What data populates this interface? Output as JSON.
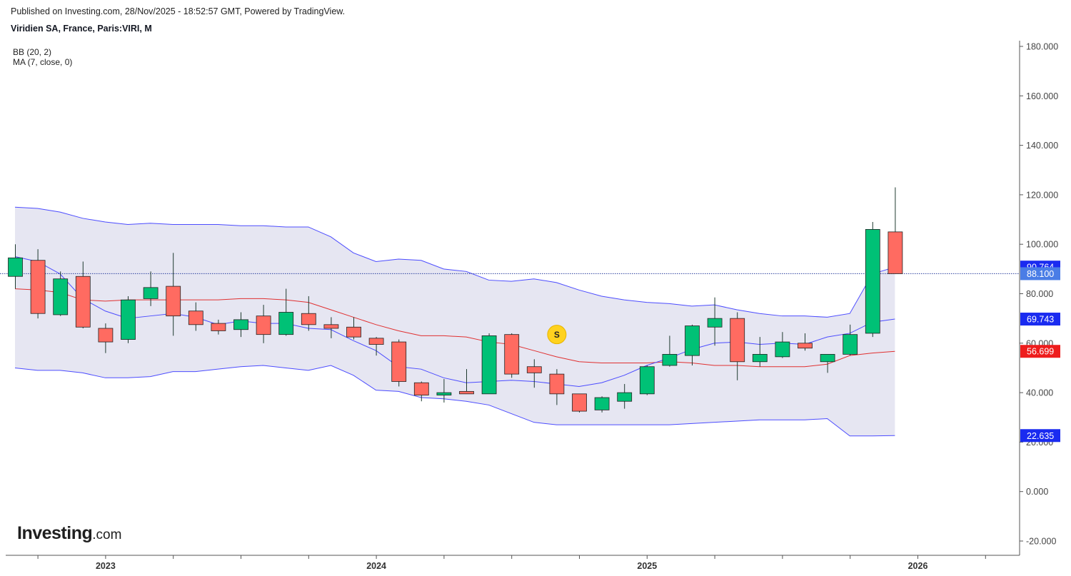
{
  "header": {
    "publish_line": "Published on Investing.com, 28/Nov/2025 - 18:52:57 GMT, Powered by TradingView.",
    "symbol_title": "Viridien SA, France, Paris:VIRI, M"
  },
  "indicators": {
    "bb_label": "BB (20, 2)",
    "ma_label": "MA (7, close, 0)"
  },
  "logo": {
    "text": "Investing",
    "suffix": ".com"
  },
  "chart_data": {
    "type": "candlestick",
    "title": "Viridien SA, France, Paris:VIRI, M",
    "interval": "Monthly",
    "ylim": [
      -25,
      185
    ],
    "y_ticks": [
      180,
      160,
      140,
      120,
      100,
      80,
      60,
      40,
      20,
      0,
      -20
    ],
    "y_tick_format_decimals": 3,
    "x_tick_labels": [
      {
        "label": "2023",
        "index": 4
      },
      {
        "label": "2024",
        "index": 16
      },
      {
        "label": "2025",
        "index": 28
      },
      {
        "label": "2026",
        "index": 40
      }
    ],
    "minor_tick_indices": [
      1,
      7,
      10,
      13,
      19,
      22,
      25,
      31,
      34,
      37,
      43
    ],
    "grid": false,
    "colors": {
      "up": "#00c176",
      "down": "#ff6b61",
      "wick": "#1e3a2f",
      "bb_band": "#4c4cff",
      "bb_fill": "#e6e6f2",
      "ma": "#e03030",
      "last_price_line": "#2a3f9e"
    },
    "candles": [
      {
        "o": 87.0,
        "h": 100.0,
        "l": 82.0,
        "c": 94.5
      },
      {
        "o": 93.5,
        "h": 98.0,
        "l": 70.0,
        "c": 72.0
      },
      {
        "o": 71.5,
        "h": 89.0,
        "l": 71.0,
        "c": 86.0
      },
      {
        "o": 87.0,
        "h": 93.0,
        "l": 66.0,
        "c": 66.5
      },
      {
        "o": 66.0,
        "h": 68.0,
        "l": 56.0,
        "c": 60.5
      },
      {
        "o": 61.5,
        "h": 79.0,
        "l": 60.0,
        "c": 77.5
      },
      {
        "o": 78.0,
        "h": 89.0,
        "l": 75.0,
        "c": 82.5
      },
      {
        "o": 83.0,
        "h": 96.5,
        "l": 63.0,
        "c": 71.0
      },
      {
        "o": 73.0,
        "h": 76.5,
        "l": 65.0,
        "c": 67.5
      },
      {
        "o": 68.0,
        "h": 69.5,
        "l": 63.5,
        "c": 65.0
      },
      {
        "o": 65.5,
        "h": 72.5,
        "l": 62.5,
        "c": 69.5
      },
      {
        "o": 71.0,
        "h": 75.5,
        "l": 60.0,
        "c": 63.5
      },
      {
        "o": 63.5,
        "h": 82.0,
        "l": 63.0,
        "c": 72.5
      },
      {
        "o": 72.0,
        "h": 79.0,
        "l": 65.0,
        "c": 67.5
      },
      {
        "o": 67.5,
        "h": 70.5,
        "l": 62.0,
        "c": 66.0
      },
      {
        "o": 66.5,
        "h": 70.5,
        "l": 61.5,
        "c": 62.5
      },
      {
        "o": 62.0,
        "h": 62.5,
        "l": 55.0,
        "c": 59.5
      },
      {
        "o": 60.5,
        "h": 61.5,
        "l": 42.5,
        "c": 44.5
      },
      {
        "o": 44.0,
        "h": 44.5,
        "l": 36.5,
        "c": 39.0
      },
      {
        "o": 39.0,
        "h": 45.5,
        "l": 36.0,
        "c": 40.0
      },
      {
        "o": 40.5,
        "h": 49.5,
        "l": 39.5,
        "c": 39.5
      },
      {
        "o": 39.5,
        "h": 64.0,
        "l": 39.5,
        "c": 63.0
      },
      {
        "o": 63.5,
        "h": 64.0,
        "l": 46.0,
        "c": 47.5
      },
      {
        "o": 50.5,
        "h": 53.5,
        "l": 42.0,
        "c": 48.0
      },
      {
        "o": 47.5,
        "h": 49.5,
        "l": 35.0,
        "c": 39.5
      },
      {
        "o": 39.5,
        "h": 39.5,
        "l": 32.0,
        "c": 32.5
      },
      {
        "o": 33.0,
        "h": 38.5,
        "l": 32.0,
        "c": 38.0
      },
      {
        "o": 36.5,
        "h": 43.5,
        "l": 33.5,
        "c": 40.0
      },
      {
        "o": 39.5,
        "h": 51.0,
        "l": 39.0,
        "c": 50.5
      },
      {
        "o": 51.0,
        "h": 63.0,
        "l": 50.5,
        "c": 55.5
      },
      {
        "o": 55.0,
        "h": 67.5,
        "l": 51.0,
        "c": 67.0
      },
      {
        "o": 66.5,
        "h": 78.5,
        "l": 59.0,
        "c": 70.0
      },
      {
        "o": 70.0,
        "h": 72.5,
        "l": 45.0,
        "c": 52.5
      },
      {
        "o": 52.5,
        "h": 62.5,
        "l": 50.5,
        "c": 55.5
      },
      {
        "o": 54.5,
        "h": 64.5,
        "l": 54.0,
        "c": 60.5
      },
      {
        "o": 60.0,
        "h": 64.0,
        "l": 57.0,
        "c": 58.0
      },
      {
        "o": 52.5,
        "h": 55.5,
        "l": 48.0,
        "c": 55.5
      },
      {
        "o": 55.5,
        "h": 67.5,
        "l": 55.0,
        "c": 63.5
      },
      {
        "o": 64.0,
        "h": 109.0,
        "l": 62.5,
        "c": 106.0
      },
      {
        "o": 105.0,
        "h": 123.0,
        "l": 88.1,
        "c": 88.1
      }
    ],
    "bb_upper": [
      115,
      114.5,
      113,
      110.5,
      109,
      108,
      108.5,
      108,
      108,
      108,
      107.5,
      107.5,
      107,
      107,
      103,
      96.5,
      93,
      94,
      93.5,
      90,
      89,
      85.5,
      85,
      86,
      84.5,
      81.5,
      79,
      77.5,
      76.5,
      76,
      75,
      75.5,
      73.5,
      72,
      71,
      71,
      70.5,
      72,
      88,
      90.764
    ],
    "bb_middle": [
      82,
      81.5,
      80.5,
      77.5,
      77,
      77.5,
      77.5,
      77.5,
      77.5,
      77.5,
      78,
      78,
      77.5,
      76.5,
      73.5,
      70.5,
      67.5,
      65,
      63,
      63,
      62.5,
      60.5,
      59.5,
      57,
      54.5,
      52.5,
      52,
      52,
      52,
      52.5,
      52,
      51,
      51,
      50.5,
      50.5,
      50.5,
      51.5,
      55,
      56,
      56.699
    ],
    "bb_lower": [
      50,
      49,
      49,
      48,
      46,
      46,
      46.5,
      48.5,
      48.5,
      49.5,
      50.5,
      51,
      50,
      49,
      51,
      47,
      41,
      40.5,
      38,
      37.5,
      36.5,
      35,
      31.5,
      28,
      27,
      27,
      27,
      27,
      27,
      27,
      27.5,
      28,
      28.5,
      29,
      29,
      29,
      29.5,
      22.5,
      22.5,
      22.635
    ],
    "ma": [
      95,
      93,
      88,
      78,
      73,
      70,
      71,
      72,
      70.5,
      67.5,
      69,
      68,
      68,
      66,
      65.5,
      61,
      57,
      50.5,
      49.5,
      46,
      44,
      44.5,
      45,
      44.5,
      43.5,
      42.5,
      44,
      47,
      51,
      54,
      57.5,
      60,
      60.5,
      59.5,
      60,
      59.5,
      62.5,
      64,
      68.5,
      69.743
    ],
    "last_price": 88.1,
    "price_labels": [
      {
        "text": "90.764",
        "value": 90.764,
        "bg": "#1a2bf0",
        "fg": "#ffffff"
      },
      {
        "text": "88.100",
        "value": 88.1,
        "bg": "#4a7de6",
        "fg": "#ffffff"
      },
      {
        "text": "69.743",
        "value": 69.743,
        "bg": "#1a2bf0",
        "fg": "#ffffff"
      },
      {
        "text": "56.699",
        "value": 56.699,
        "bg": "#ee1c1c",
        "fg": "#ffffff"
      },
      {
        "text": "22.635",
        "value": 22.635,
        "bg": "#1a2bf0",
        "fg": "#ffffff"
      }
    ],
    "split_marker": {
      "text": "S",
      "index": 24,
      "value": 63.5,
      "bg": "#ffd21f",
      "fg": "#222222"
    }
  }
}
